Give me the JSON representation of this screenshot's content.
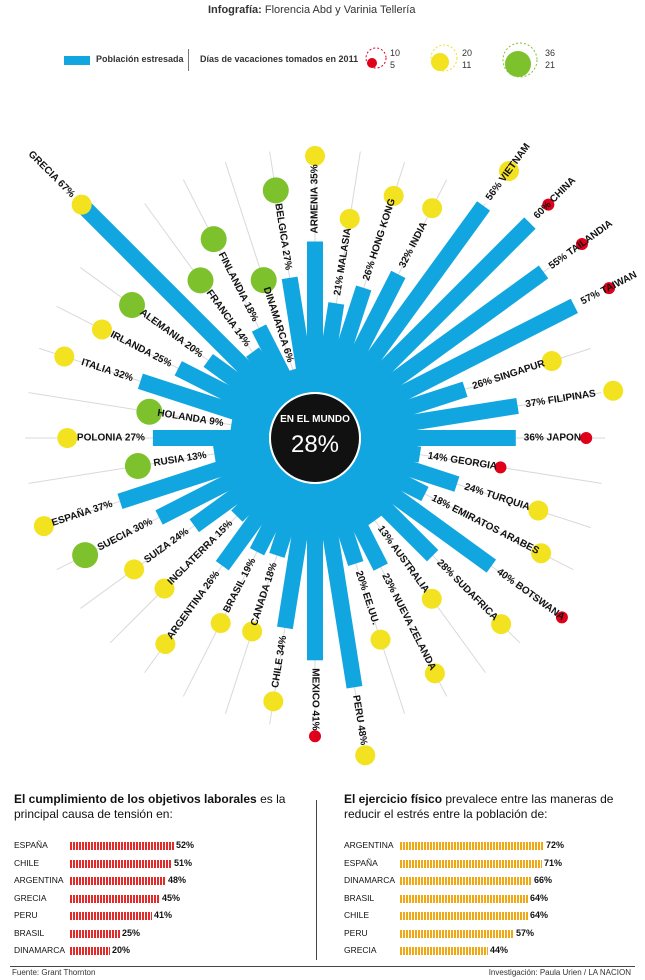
{
  "credit": {
    "label": "Infografía:",
    "names": "Florencia Abd y Varinia Tellería"
  },
  "legend": {
    "bar_label": "Población estresada",
    "circle_label": "Días de vacaciones tomados en 2011",
    "red": {
      "hi": "10",
      "lo": "5"
    },
    "yellow": {
      "hi": "20",
      "lo": "11"
    },
    "green": {
      "hi": "36",
      "lo": "21"
    }
  },
  "colors": {
    "bar": "#12a6e0",
    "red": "#e0001a",
    "yellow": "#f3e21f",
    "green": "#7dc22c",
    "stripe_red": "#e22b2b",
    "stripe_orange": "#f0a817",
    "center": "#111111"
  },
  "center": {
    "title": "EN EL MUNDO",
    "value": "28%",
    "pct": 28
  },
  "chart_data": {
    "type": "radial-bar",
    "title": "",
    "legend": [
      "Población estresada",
      "Días de vacaciones tomados en 2011"
    ],
    "vacation_scale": {
      "red": [
        5,
        10
      ],
      "yellow": [
        11,
        20
      ],
      "green": [
        21,
        36
      ]
    },
    "countries": [
      {
        "name": "ARMENIA",
        "stress": 35,
        "vac": "yellow",
        "label": "ARMENIA 35%"
      },
      {
        "name": "MALASIA",
        "stress": 21,
        "vac": "yellow",
        "label": "21% MALASIA"
      },
      {
        "name": "HONG KONG",
        "stress": 26,
        "vac": "yellow",
        "label": "26% HONG KONG"
      },
      {
        "name": "INDIA",
        "stress": 32,
        "vac": "yellow",
        "label": "32% INDIA"
      },
      {
        "name": "VIETNAM",
        "stress": 56,
        "vac": "yellow",
        "label": "56% VIETNAM"
      },
      {
        "name": "CHINA",
        "stress": 60,
        "vac": "red",
        "label": "60% CHINA"
      },
      {
        "name": "TAILANDIA",
        "stress": 55,
        "vac": "red",
        "label": "55% TAILANDIA"
      },
      {
        "name": "TAIWAN",
        "stress": 57,
        "vac": "red",
        "label": "57% TAIWAN"
      },
      {
        "name": "SINGAPUR",
        "stress": 26,
        "vac": "yellow",
        "label": "26% SINGAPUR"
      },
      {
        "name": "FILIPINAS",
        "stress": 37,
        "vac": "yellow",
        "label": "37% FILIPINAS"
      },
      {
        "name": "JAPON",
        "stress": 36,
        "vac": "red",
        "label": "36% JAPON"
      },
      {
        "name": "GEORGIA",
        "stress": 14,
        "vac": "red",
        "label": "14% GEORGIA"
      },
      {
        "name": "TURQUIA",
        "stress": 24,
        "vac": "yellow",
        "label": "24% TURQUIA"
      },
      {
        "name": "EMIRATOS ARABES",
        "stress": 18,
        "vac": "yellow",
        "label": "18% EMIRATOS ARABES"
      },
      {
        "name": "BOTSWANA",
        "stress": 40,
        "vac": "red",
        "label": "40% BOTSWANA"
      },
      {
        "name": "SUDAFRICA",
        "stress": 28,
        "vac": "yellow",
        "label": "28% SUDAFRICA"
      },
      {
        "name": "AUSTRALIA",
        "stress": 13,
        "vac": "yellow",
        "label": "13% AUSTRALIA"
      },
      {
        "name": "NUEVA ZELANDA",
        "stress": 23,
        "vac": "yellow",
        "label": "23% NUEVA ZELANDA"
      },
      {
        "name": "EE.UU.",
        "stress": 20,
        "vac": "yellow",
        "label": "20% EE.UU."
      },
      {
        "name": "PERU",
        "stress": 48,
        "vac": "yellow",
        "label": "PERU 48%"
      },
      {
        "name": "MEXICO",
        "stress": 41,
        "vac": "red",
        "label": "MEXICO 41%"
      },
      {
        "name": "CHILE",
        "stress": 34,
        "vac": "yellow",
        "label": "CHILE 34%"
      },
      {
        "name": "CANADA",
        "stress": 18,
        "vac": "yellow",
        "label": "CANADA 18%"
      },
      {
        "name": "BRASIL",
        "stress": 19,
        "vac": "yellow",
        "label": "BRASIL 19%"
      },
      {
        "name": "ARGENTINA",
        "stress": 26,
        "vac": "yellow",
        "label": "ARGENTINA 26%"
      },
      {
        "name": "INGLATERRA",
        "stress": 15,
        "vac": "yellow",
        "label": "INGLATERRA 15%"
      },
      {
        "name": "SUIZA",
        "stress": 24,
        "vac": "yellow",
        "label": "SUIZA 24%"
      },
      {
        "name": "SUECIA",
        "stress": 30,
        "vac": "green",
        "label": "SUECIA 30%"
      },
      {
        "name": "ESPAÑA",
        "stress": 37,
        "vac": "yellow",
        "label": "ESPAÑA 37%"
      },
      {
        "name": "RUSIA",
        "stress": 13,
        "vac": "green",
        "label": "RUSIA 13%"
      },
      {
        "name": "POLONIA",
        "stress": 27,
        "vac": "yellow",
        "label": "POLONIA 27%"
      },
      {
        "name": "HOLANDA",
        "stress": 9,
        "vac": "green",
        "label": "HOLANDA 9%"
      },
      {
        "name": "ITALIA",
        "stress": 32,
        "vac": "yellow",
        "label": "ITALIA 32%"
      },
      {
        "name": "IRLANDA",
        "stress": 25,
        "vac": "yellow",
        "label": "IRLANDA 25%"
      },
      {
        "name": "ALEMANIA",
        "stress": 20,
        "vac": "green",
        "label": "ALEMANIA 20%"
      },
      {
        "name": "GRECIA",
        "stress": 67,
        "vac": "yellow",
        "label": "GRECIA 67%"
      },
      {
        "name": "FRANCIA",
        "stress": 14,
        "vac": "green",
        "label": "FRANCIA 14%"
      },
      {
        "name": "FINLANDIA",
        "stress": 18,
        "vac": "green",
        "label": "FINLANDIA 18%"
      },
      {
        "name": "DINAMARCA",
        "stress": 6,
        "vac": "green",
        "label": "DINAMARCA 6%"
      },
      {
        "name": "BELGICA",
        "stress": 27,
        "vac": "green",
        "label": "BELGICA 27%"
      }
    ]
  },
  "panel_left": {
    "title_bold": "El cumplimiento de los objetivos laborales",
    "title_rest": " es la principal causa de tensión en:",
    "rows": [
      {
        "cat": "ESPAÑA",
        "value": 52,
        "label": "52%"
      },
      {
        "cat": "CHILE",
        "value": 51,
        "label": "51%"
      },
      {
        "cat": "ARGENTINA",
        "value": 48,
        "label": "48%"
      },
      {
        "cat": "GRECIA",
        "value": 45,
        "label": "45%"
      },
      {
        "cat": "PERU",
        "value": 41,
        "label": "41%"
      },
      {
        "cat": "BRASIL",
        "value": 25,
        "label": "25%"
      },
      {
        "cat": "DINAMARCA",
        "value": 20,
        "label": "20%"
      }
    ]
  },
  "panel_right": {
    "title_bold": "El ejercicio físico",
    "title_rest": " prevalece entre las maneras de reducir el estrés entre la población de:",
    "rows": [
      {
        "cat": "ARGENTINA",
        "value": 72,
        "label": "72%"
      },
      {
        "cat": "ESPAÑA",
        "value": 71,
        "label": "71%"
      },
      {
        "cat": "DINAMARCA",
        "value": 66,
        "label": "66%"
      },
      {
        "cat": "BRASIL",
        "value": 64,
        "label": "64%"
      },
      {
        "cat": "CHILE",
        "value": 64,
        "label": "64%"
      },
      {
        "cat": "PERU",
        "value": 57,
        "label": "57%"
      },
      {
        "cat": "GRECIA",
        "value": 44,
        "label": "44%"
      }
    ]
  },
  "footer": {
    "source": "Fuente: Grant Thornton",
    "research": "Investigación: Paula Urien / LA NACION"
  }
}
